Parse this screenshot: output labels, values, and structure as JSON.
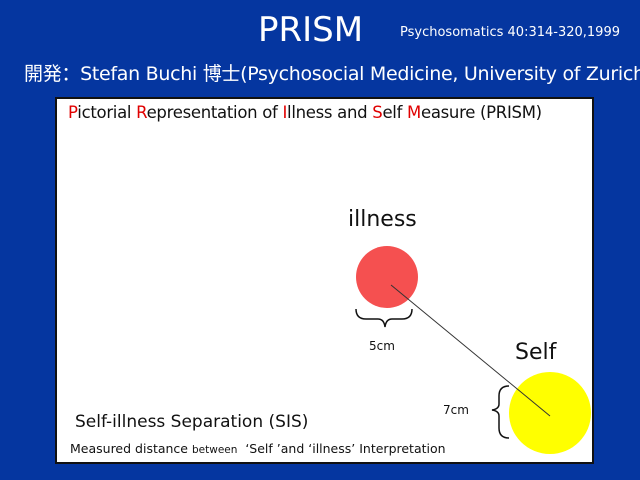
{
  "slide": {
    "title": "PRISM",
    "reference": "Psychosomatics 40:314-320,1999",
    "developer": "開発：Stefan Buchi 博士(Psychosocial Medicine, University of Zurich)"
  },
  "diagram": {
    "subtitle_parts": [
      "P",
      "ictorial ",
      "R",
      "epresentation of ",
      "I",
      "llness and ",
      "S",
      "elf ",
      "M",
      "easure (PRISM)"
    ],
    "illness_label": "illness",
    "self_label": "Self",
    "illness_diameter": "5cm",
    "self_diameter": "7cm",
    "sis_heading": "Self-illness Separation (SIS)",
    "measured_prefix": "Measured distance ",
    "measured_between": "between",
    "measured_suffix": "  ‘Self ’and ‘illness’ Interpretation",
    "colors": {
      "illness": "#f55050",
      "self": "#ffff00",
      "accent_letters": "#e00000",
      "background": "#0536a0"
    }
  }
}
